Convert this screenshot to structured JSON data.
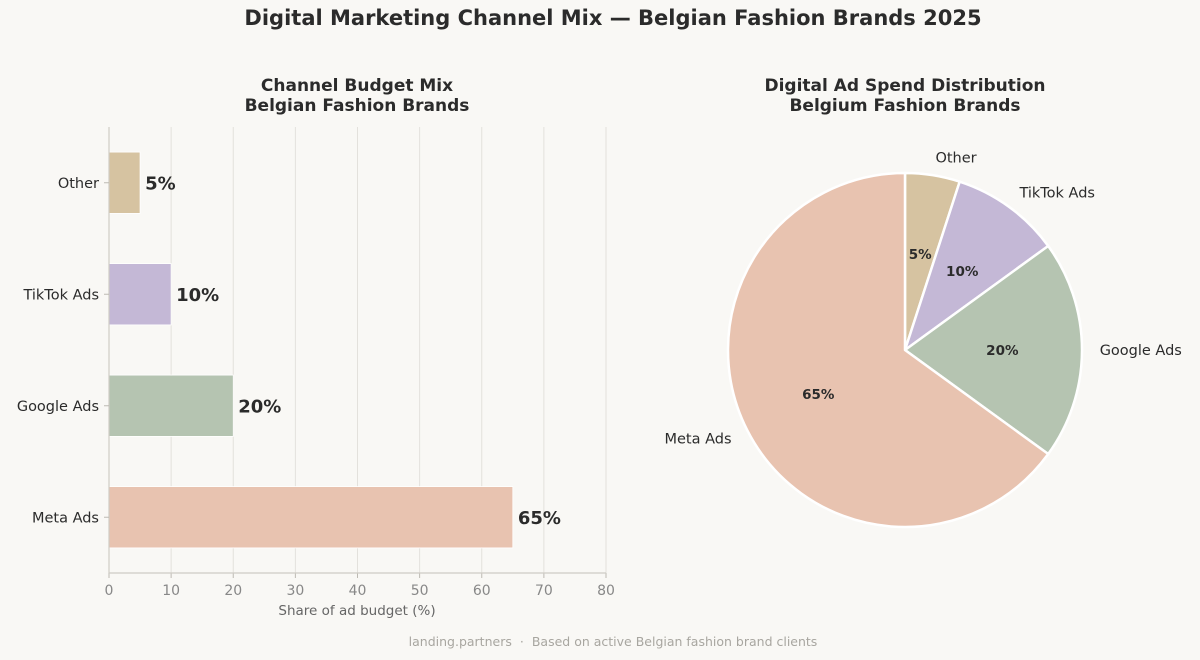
{
  "suptitle": "Digital Marketing Channel Mix — Belgian Fashion Brands 2025",
  "footer": {
    "source": "landing.partners",
    "separator": "·",
    "note": "Based on active Belgian fashion brand clients"
  },
  "chart_data": [
    {
      "type": "bar",
      "orientation": "horizontal",
      "title": "Channel Budget Mix",
      "subtitle": "Belgian Fashion Brands",
      "categories": [
        "Meta Ads",
        "Google Ads",
        "TikTok Ads",
        "Other"
      ],
      "values": [
        65,
        20,
        10,
        5
      ],
      "data_labels": [
        "65%",
        "20%",
        "10%",
        "5%"
      ],
      "colors": [
        "#e8c3b0",
        "#b5c4b1",
        "#c4b8d6",
        "#d6c3a1"
      ],
      "xlabel": "Share of ad budget (%)",
      "ylabel": "",
      "xlim": [
        0,
        80
      ],
      "xticks": [
        0,
        10,
        20,
        30,
        40,
        50,
        60,
        70,
        80
      ],
      "grid": "vertical"
    },
    {
      "type": "pie",
      "title": "Digital Ad Spend Distribution",
      "subtitle": "Belgium Fashion Brands",
      "categories": [
        "Other",
        "TikTok Ads",
        "Google Ads",
        "Meta Ads"
      ],
      "values": [
        5,
        10,
        20,
        65
      ],
      "data_labels": [
        "5%",
        "10%",
        "20%",
        "65%"
      ],
      "colors": [
        "#d6c3a1",
        "#c4b8d6",
        "#b5c4b1",
        "#e8c3b0"
      ],
      "start_angle": "top",
      "direction": "clockwise"
    }
  ]
}
